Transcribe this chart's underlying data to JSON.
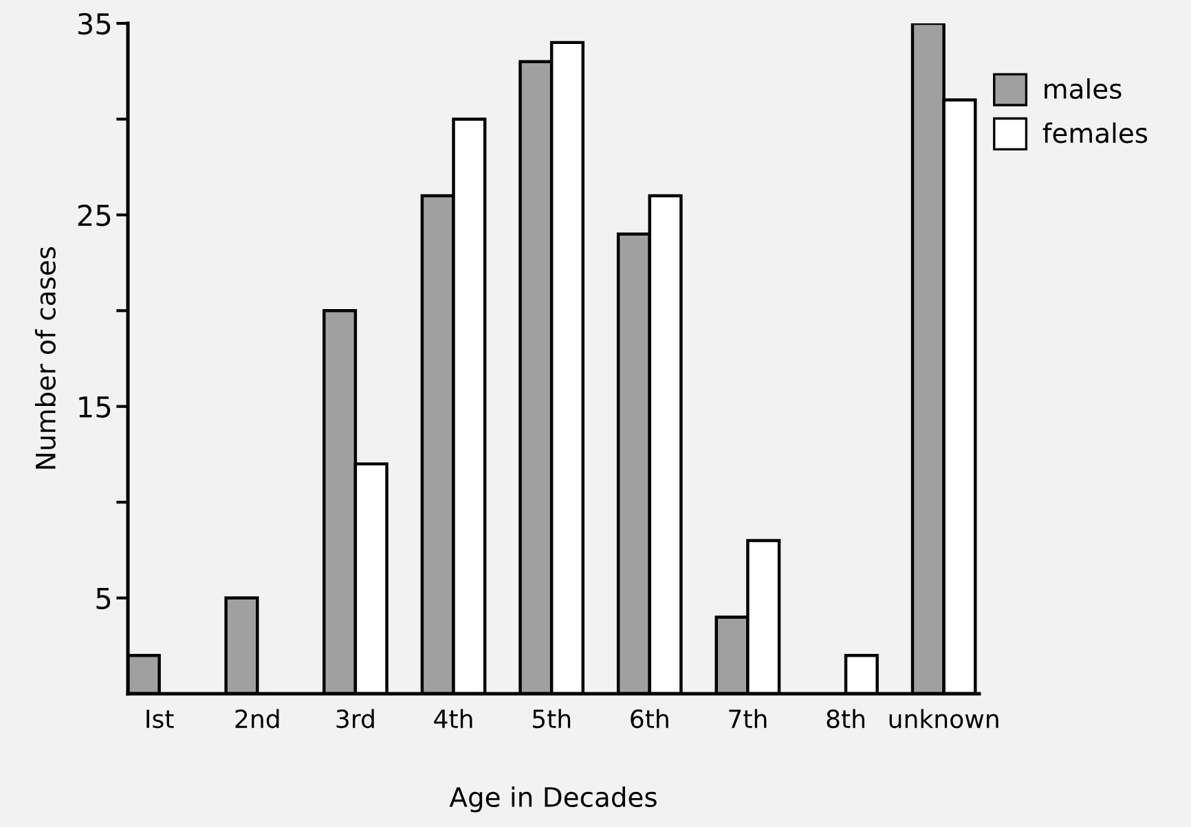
{
  "chart_data": {
    "type": "bar",
    "xlabel": "Age in Decades",
    "ylabel": "Number of cases",
    "categories": [
      "Ist",
      "2nd",
      "3rd",
      "4th",
      "5th",
      "6th",
      "7th",
      "8th",
      "unknown"
    ],
    "series": [
      {
        "name": "males",
        "color": "#a0a0a0",
        "values": [
          2,
          5,
          20,
          26,
          33,
          24,
          4,
          null,
          35
        ]
      },
      {
        "name": "females",
        "color": "#ffffff",
        "values": [
          null,
          null,
          12,
          30,
          34,
          26,
          8,
          2,
          31
        ]
      }
    ],
    "ylim": [
      0,
      35
    ],
    "yticks": [
      5,
      {
        "value": 10,
        "label": null
      },
      15,
      {
        "value": 20,
        "label": null
      },
      25,
      {
        "value": 30,
        "label": null
      },
      35
    ],
    "grid": false,
    "legend": "top right"
  }
}
